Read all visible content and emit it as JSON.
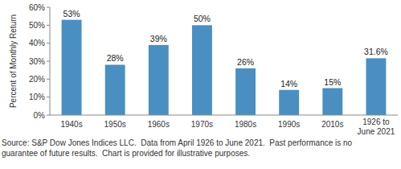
{
  "chart_data": {
    "type": "bar",
    "y_label": "Percent of Monthly Return",
    "categories": [
      "1940s",
      "1950s",
      "1960s",
      "1970s",
      "1980s",
      "1990s",
      "2010s",
      "1926 to\nJune 2021"
    ],
    "values": [
      53,
      28,
      39,
      50,
      26,
      14,
      15,
      31.6
    ],
    "value_labels": [
      "53%",
      "28%",
      "39%",
      "50%",
      "26%",
      "14%",
      "15%",
      "31.6%"
    ],
    "data_labels": true,
    "color": "#4a8fc1",
    "ylim": [
      0,
      60
    ],
    "yticks": [
      {
        "value": 0,
        "label": "0%"
      },
      {
        "value": 10,
        "label": "10%"
      },
      {
        "value": 20,
        "label": "20%"
      },
      {
        "value": 30,
        "label": "30%"
      },
      {
        "value": 40,
        "label": "40%"
      },
      {
        "value": 50,
        "label": "50%"
      },
      {
        "value": 60,
        "label": "60%"
      }
    ],
    "grid": false,
    "annotations": [
      "Source: S&P Dow Jones Indices LLC.  Data from April 1926 to June 2021.  Past performance is no",
      "guarantee of future results.  Chart is provided for illustrative purposes."
    ]
  }
}
